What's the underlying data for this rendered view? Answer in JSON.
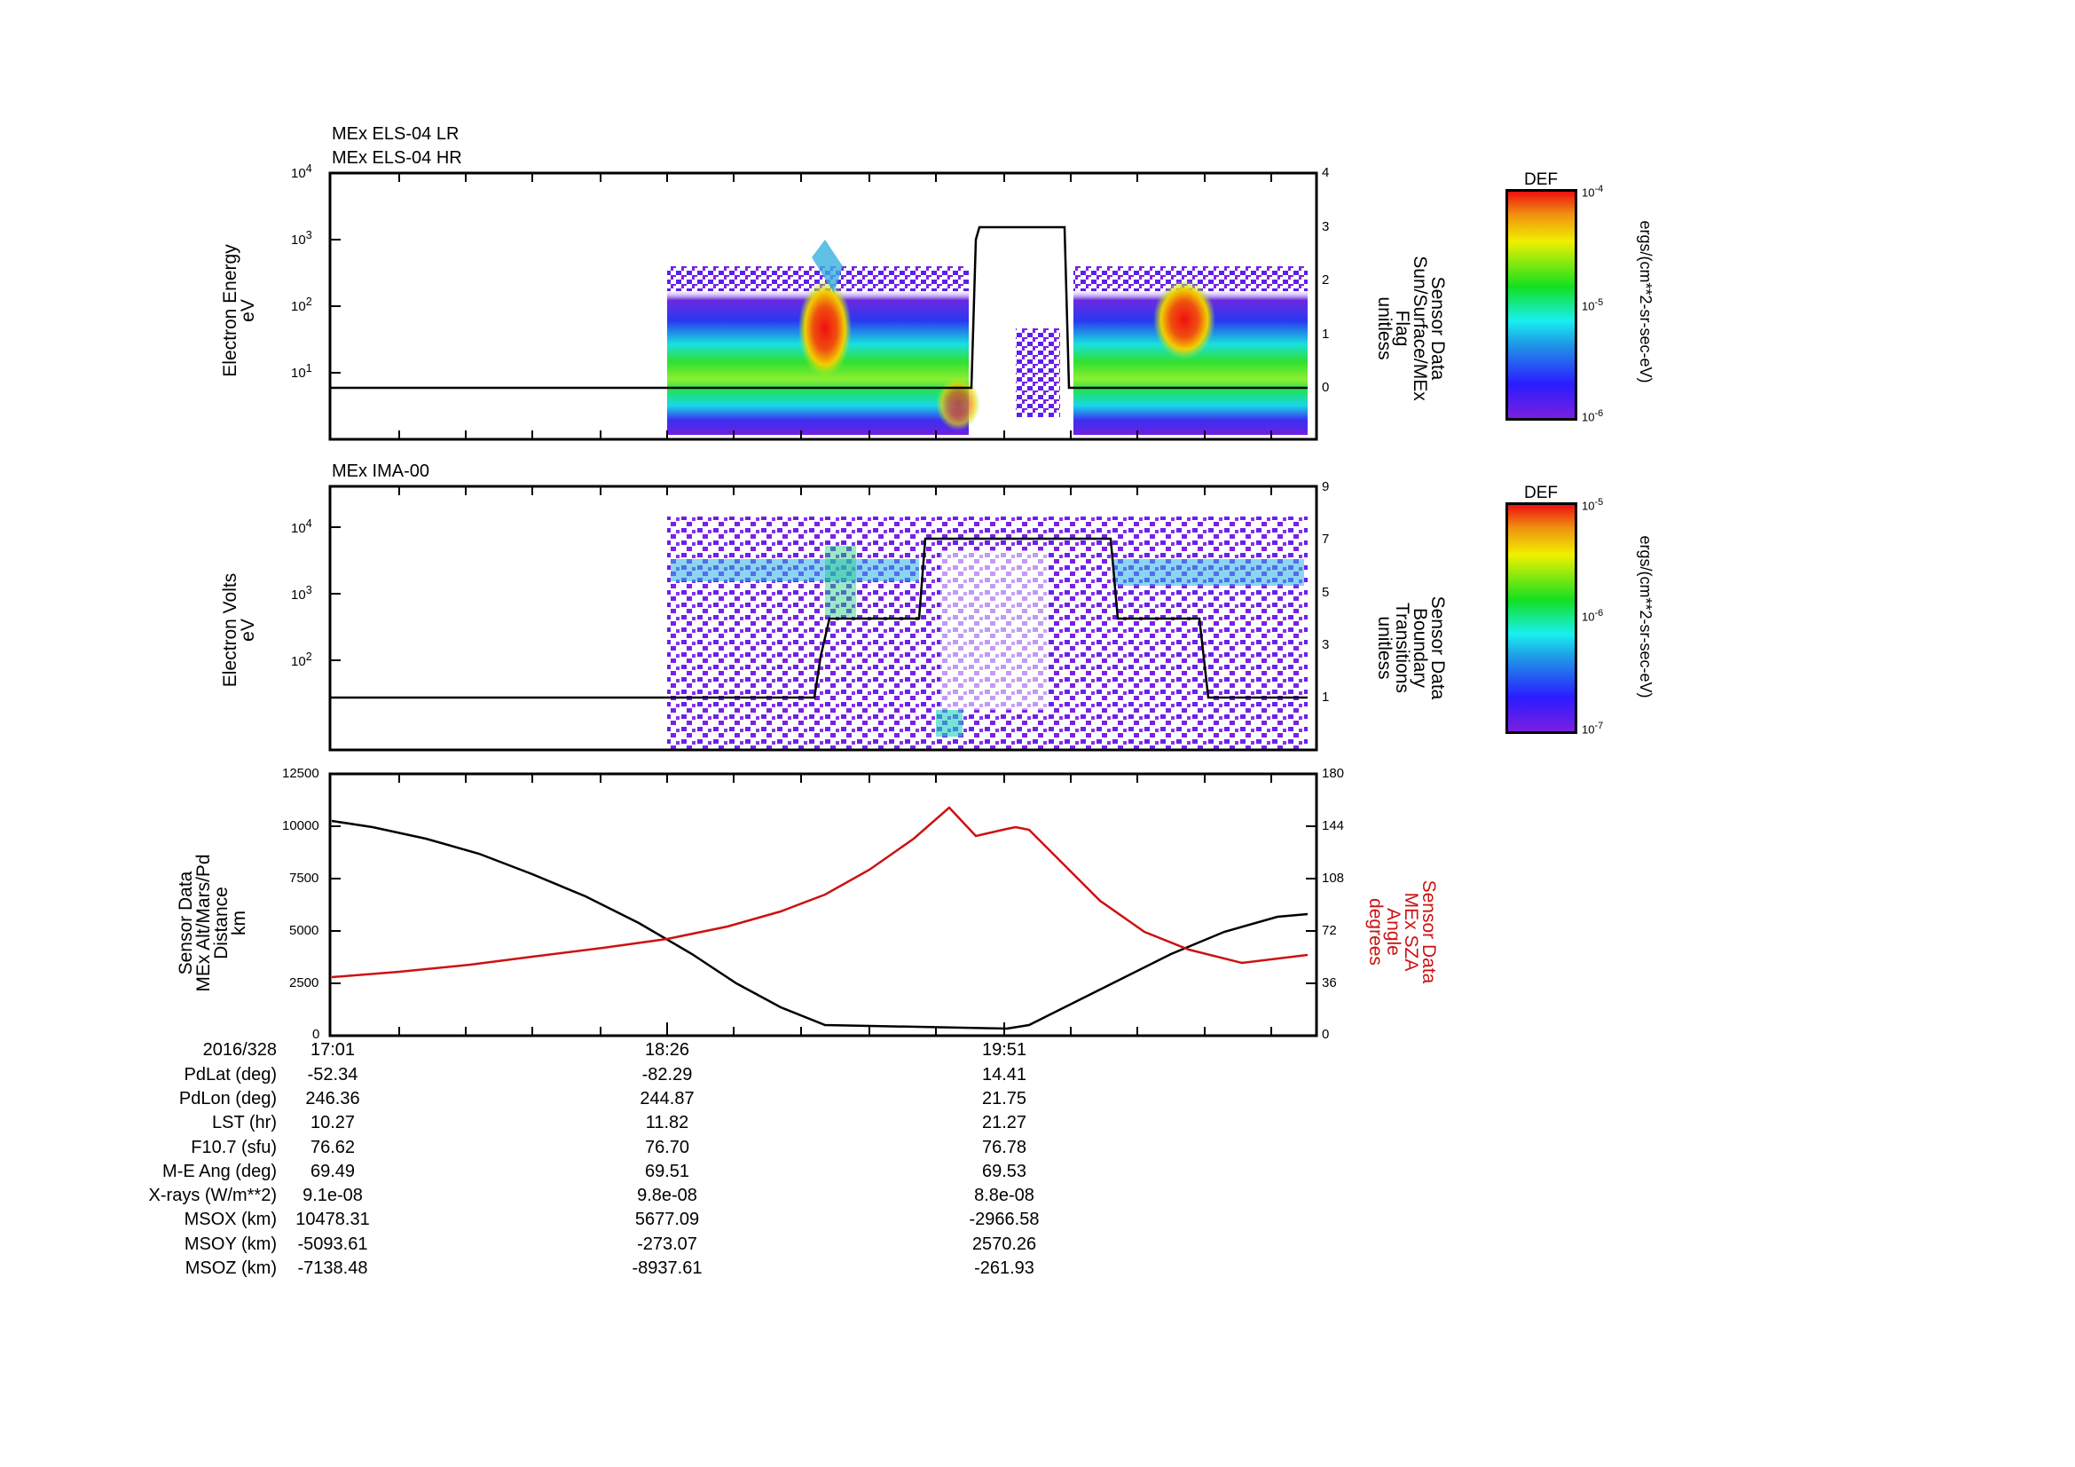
{
  "panels": [
    {
      "id": "els",
      "titles": [
        "MEx ELS-04 LR",
        "MEx ELS-04 HR"
      ],
      "ylabel": [
        "Electron Energy",
        "eV"
      ],
      "yticks": [
        "10^4",
        "10^3",
        "10^2",
        "10^1"
      ],
      "y2label": [
        "Sensor Data",
        "Sun/Surface/MEx",
        "Flag",
        "unitless"
      ],
      "y2ticks": [
        "4",
        "3",
        "2",
        "1",
        "0"
      ],
      "colorbar": {
        "title": "DEF",
        "max": "10^-4",
        "mid": "10^-5",
        "min": "10^-6",
        "unit": "ergs/(cm**2-sr-sec-eV)"
      }
    },
    {
      "id": "ima",
      "titles": [
        "MEx IMA-00"
      ],
      "ylabel": [
        "Electron Volts",
        "eV"
      ],
      "yticks": [
        "10^4",
        "10^3",
        "10^2"
      ],
      "y2label": [
        "Sensor Data",
        "Boundary",
        "Transitions",
        "unitless"
      ],
      "y2ticks": [
        "9",
        "7",
        "5",
        "3",
        "1"
      ],
      "colorbar": {
        "title": "DEF",
        "max": "10^-5",
        "mid": "10^-6",
        "min": "10^-7",
        "unit": "ergs/(cm**2-sr-sec-eV)"
      }
    },
    {
      "id": "alt-sza",
      "ylabel": [
        "Sensor Data",
        "MEx Alt/Mars/Pd",
        "Distance",
        "km"
      ],
      "yticks": [
        "12500",
        "10000",
        "7500",
        "5000",
        "2500",
        "0"
      ],
      "y2label": [
        "Sensor Data",
        "MEx SZA",
        "Angle",
        "degrees"
      ],
      "y2ticks": [
        "180",
        "144",
        "108",
        "72",
        "36",
        "0"
      ],
      "y2color": "#cc1111"
    }
  ],
  "ephemeris": {
    "header": "2016/328",
    "times": [
      "17:01",
      "18:26",
      "19:51"
    ],
    "rows": [
      {
        "label": "PdLat (deg)",
        "values": [
          "-52.34",
          "-82.29",
          "14.41"
        ]
      },
      {
        "label": "PdLon (deg)",
        "values": [
          "246.36",
          "244.87",
          "21.75"
        ]
      },
      {
        "label": "LST (hr)",
        "values": [
          "10.27",
          "11.82",
          "21.27"
        ]
      },
      {
        "label": "F10.7 (sfu)",
        "values": [
          "76.62",
          "76.70",
          "76.78"
        ]
      },
      {
        "label": "M-E Ang (deg)",
        "values": [
          "69.49",
          "69.51",
          "69.53"
        ]
      },
      {
        "label": "X-rays (W/m**2)",
        "values": [
          "9.1e-08",
          "9.8e-08",
          "8.8e-08"
        ]
      },
      {
        "label": "MSOX (km)",
        "values": [
          "10478.31",
          "5677.09",
          "-2966.58"
        ]
      },
      {
        "label": "MSOY (km)",
        "values": [
          "-5093.61",
          "-273.07",
          "2570.26"
        ]
      },
      {
        "label": "MSOZ (km)",
        "values": [
          "-7138.48",
          "-8937.61",
          "-261.93"
        ]
      }
    ]
  },
  "chart_data": [
    {
      "type": "heatmap",
      "title": "MEx ELS-04 LR / MEx ELS-04 HR",
      "xlabel": "Time (UT) 2016/328",
      "ylabel": "Electron Energy (eV)",
      "yscale": "log",
      "ylim": [
        1,
        10000
      ],
      "x_ticks": [
        "17:01",
        "18:26",
        "19:51"
      ],
      "colorbar": {
        "label": "DEF ergs/(cm**2-sr-sec-eV)",
        "range": [
          1e-06,
          0.0001
        ],
        "scale": "log"
      },
      "description": "Data begin ~18:26; bright band 5-100 eV, red peaks ~18:45 and ~20:30, data gap ~19:40-19:48",
      "overlay": {
        "name": "Sun/Surface/MEx Flag (unitless)",
        "y2lim": [
          -1,
          4
        ],
        "points": [
          [
            "17:01",
            0
          ],
          [
            "19:23",
            0
          ],
          [
            "19:26",
            3
          ],
          [
            "19:39",
            3
          ],
          [
            "19:42",
            0
          ],
          [
            "20:51",
            0
          ]
        ]
      }
    },
    {
      "type": "heatmap",
      "title": "MEx IMA-00",
      "xlabel": "Time (UT) 2016/328",
      "ylabel": "Electron Volts (eV)",
      "yscale": "log",
      "ylim": [
        5,
        50000
      ],
      "colorbar": {
        "label": "DEF ergs/(cm**2-sr-sec-eV)",
        "range": [
          1e-07,
          1e-05
        ],
        "scale": "log"
      },
      "description": "Sparse purple noise from ~18:26; cyan/green bands near 1-3 keV around 18:30-19:00 and 19:50-20:50",
      "overlay": {
        "name": "Boundary Transitions (unitless)",
        "y2lim": [
          -1,
          9
        ],
        "points": [
          [
            "17:01",
            1
          ],
          [
            "18:48",
            1
          ],
          [
            "18:52",
            4
          ],
          [
            "19:03",
            4
          ],
          [
            "19:05",
            7
          ],
          [
            "19:55",
            7
          ],
          [
            "19:57",
            4
          ],
          [
            "20:17",
            4
          ],
          [
            "20:20",
            1
          ],
          [
            "20:51",
            1
          ]
        ]
      }
    },
    {
      "type": "line",
      "xlabel": "Time (UT) 2016/328",
      "x_ticks": [
        "17:01",
        "18:26",
        "19:51"
      ],
      "series": [
        {
          "name": "MEx Alt/Mars/Pd Distance (km)",
          "axis": "left",
          "color": "#000000",
          "x": [
            "17:01",
            "17:30",
            "18:00",
            "18:26",
            "18:50",
            "19:10",
            "19:30",
            "19:50",
            "19:58",
            "20:15",
            "20:35",
            "20:51"
          ],
          "values": [
            10250,
            9850,
            8800,
            7150,
            5100,
            3300,
            1700,
            350,
            350,
            1900,
            3900,
            5800
          ]
        },
        {
          "name": "MEx SZA Angle (degrees)",
          "axis": "right",
          "color": "#cc1111",
          "x": [
            "17:01",
            "17:30",
            "18:00",
            "18:26",
            "18:50",
            "19:10",
            "19:30",
            "19:52",
            "19:56",
            "20:15",
            "20:35",
            "20:51"
          ],
          "values": [
            40,
            44,
            50,
            58,
            72,
            90,
            118,
            143,
            143,
            100,
            70,
            55
          ]
        }
      ],
      "ylim": [
        0,
        12500
      ],
      "y2lim": [
        0,
        180
      ]
    }
  ]
}
